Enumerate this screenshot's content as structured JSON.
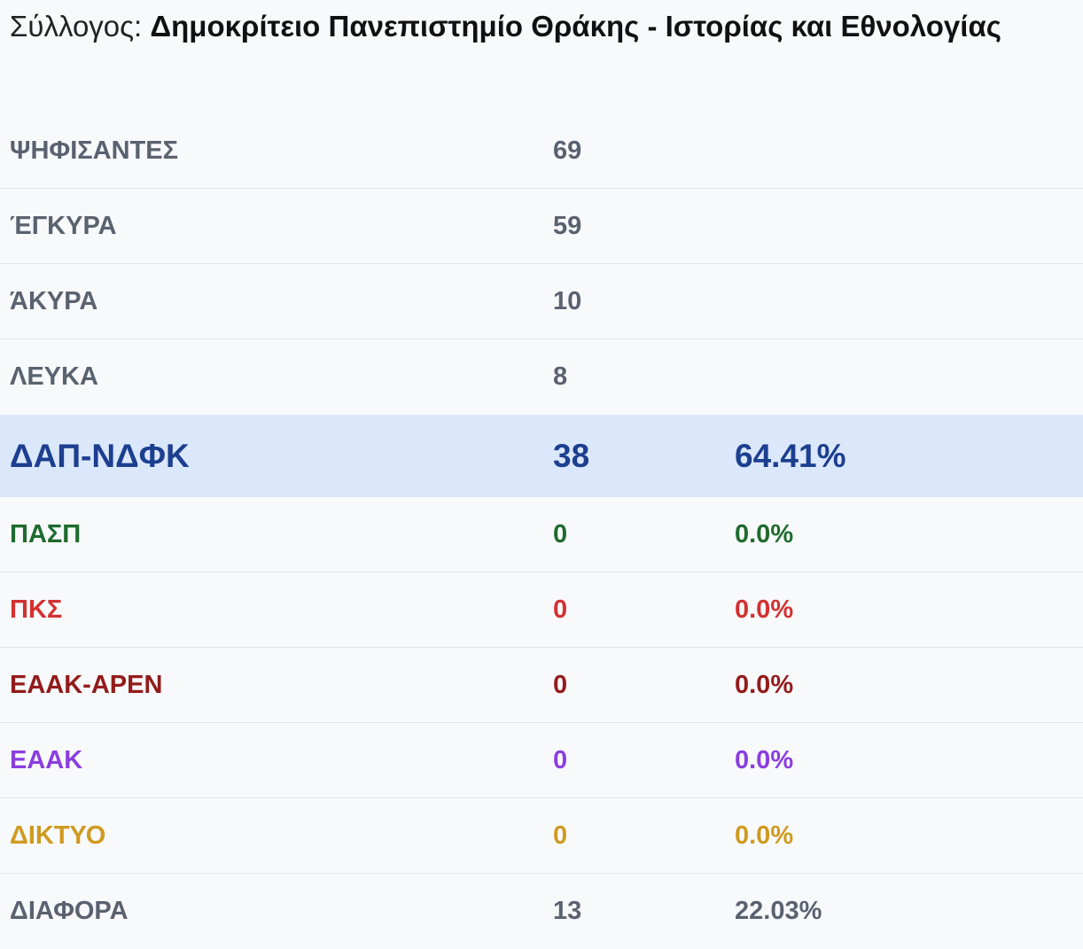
{
  "header": {
    "prefix": "Σύλλογος:",
    "name": "Δημοκρίτειο Πανεπιστημίο Θράκης - Ιστορίας και Εθνολογίας"
  },
  "stats": [
    {
      "label": "ΨΗΦΙΣΑΝΤΕΣ",
      "value": "69"
    },
    {
      "label": "ΈΓΚΥΡΑ",
      "value": "59"
    },
    {
      "label": "ΆΚΥΡΑ",
      "value": "10"
    },
    {
      "label": "ΛΕΥΚΑ",
      "value": "8"
    }
  ],
  "parties": [
    {
      "label": "ΔΑΠ-ΝΔΦΚ",
      "votes": "38",
      "pct": "64.41%",
      "color": "#1c3f8f"
    },
    {
      "label": "ΠΑΣΠ",
      "votes": "0",
      "pct": "0.0%",
      "color": "#1e6b2e"
    },
    {
      "label": "ΠΚΣ",
      "votes": "0",
      "pct": "0.0%",
      "color": "#d33131"
    },
    {
      "label": "ΕΑΑΚ-ΑΡΕΝ",
      "votes": "0",
      "pct": "0.0%",
      "color": "#931b1b"
    },
    {
      "label": "ΕΑΑΚ",
      "votes": "0",
      "pct": "0.0%",
      "color": "#8a3ee0"
    },
    {
      "label": "ΔΙΚΤΥΟ",
      "votes": "0",
      "pct": "0.0%",
      "color": "#cf9a1f"
    },
    {
      "label": "ΔΙΑΦΟΡΑ",
      "votes": "13",
      "pct": "22.03%",
      "color": "#5a6270"
    }
  ]
}
